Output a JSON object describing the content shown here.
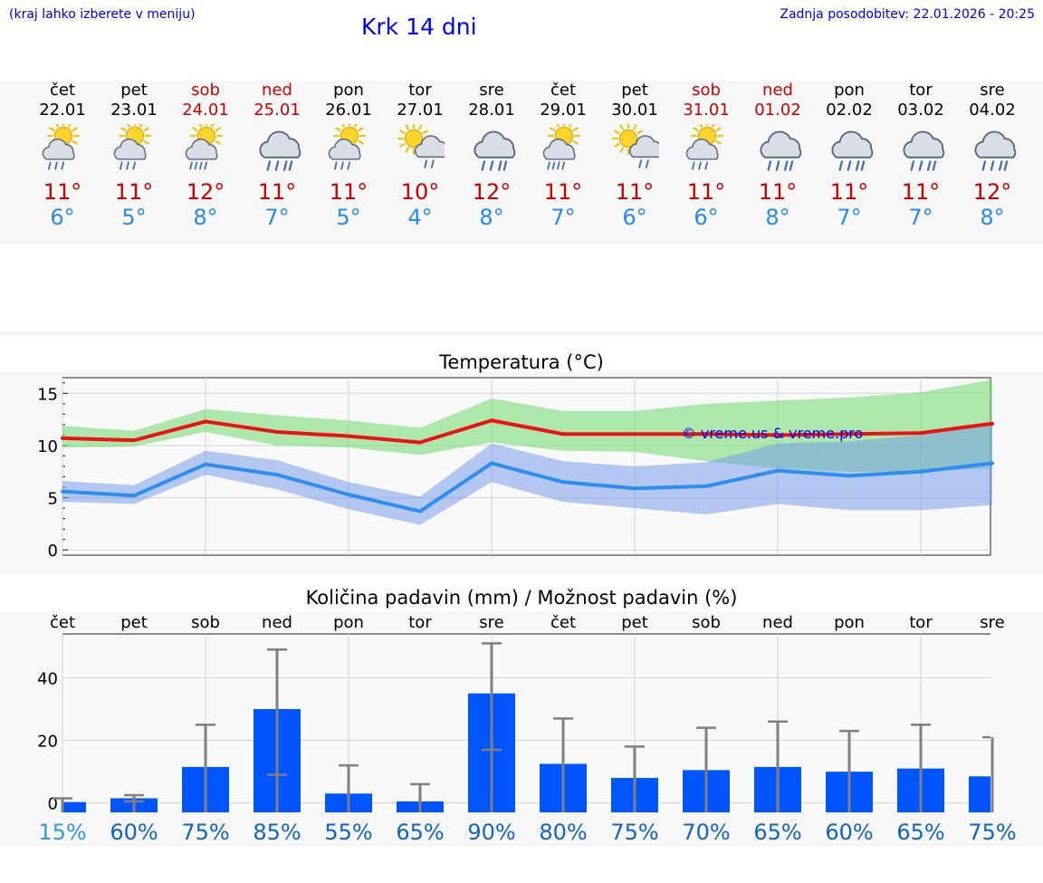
{
  "header": {
    "left_note": "(kraj lahko izberete v meniju)",
    "title": "Krk 14 dni",
    "updated": "Zadnja posodobitev: 22.01.2026 - 20:25"
  },
  "colors": {
    "weekday": "#000000",
    "weekend": "#cc0000",
    "max_temp": "#cc0000",
    "min_temp": "#2a8ae6",
    "link": "#0000ee"
  },
  "forecast": [
    {
      "day": "čet",
      "date": "22.01",
      "weekend": false,
      "icon": "sun-cloud-rain-icon",
      "max": "11°",
      "min": "6°"
    },
    {
      "day": "pet",
      "date": "23.01",
      "weekend": false,
      "icon": "sun-cloud-rain-icon",
      "max": "11°",
      "min": "5°"
    },
    {
      "day": "sob",
      "date": "24.01",
      "weekend": true,
      "icon": "sun-cloud-heavy-rain-icon",
      "max": "12°",
      "min": "8°"
    },
    {
      "day": "ned",
      "date": "25.01",
      "weekend": true,
      "icon": "cloud-rain-icon",
      "max": "11°",
      "min": "7°"
    },
    {
      "day": "pon",
      "date": "26.01",
      "weekend": false,
      "icon": "sun-cloud-rain-icon",
      "max": "11°",
      "min": "5°"
    },
    {
      "day": "tor",
      "date": "27.01",
      "weekend": false,
      "icon": "sun-cloud-light-rain-icon",
      "max": "10°",
      "min": "4°"
    },
    {
      "day": "sre",
      "date": "28.01",
      "weekend": false,
      "icon": "cloud-rain-icon",
      "max": "12°",
      "min": "8°"
    },
    {
      "day": "čet",
      "date": "29.01",
      "weekend": false,
      "icon": "sun-cloud-heavy-rain-icon",
      "max": "11°",
      "min": "7°"
    },
    {
      "day": "pet",
      "date": "30.01",
      "weekend": false,
      "icon": "sun-cloud-light-rain-icon",
      "max": "11°",
      "min": "6°"
    },
    {
      "day": "sob",
      "date": "31.01",
      "weekend": true,
      "icon": "sun-cloud-rain-icon",
      "max": "11°",
      "min": "6°"
    },
    {
      "day": "ned",
      "date": "01.02",
      "weekend": true,
      "icon": "cloud-rain-icon",
      "max": "11°",
      "min": "8°"
    },
    {
      "day": "pon",
      "date": "02.02",
      "weekend": false,
      "icon": "cloud-rain-icon",
      "max": "11°",
      "min": "7°"
    },
    {
      "day": "tor",
      "date": "03.02",
      "weekend": false,
      "icon": "cloud-rain-icon",
      "max": "11°",
      "min": "7°"
    },
    {
      "day": "sre",
      "date": "04.02",
      "weekend": false,
      "icon": "cloud-rain-icon",
      "max": "12°",
      "min": "8°"
    }
  ],
  "chart_data": [
    {
      "type": "line",
      "title": "Temperatura (°C)",
      "watermark": "© vreme.us & vreme.pro",
      "ylim": [
        -0.5,
        16.5
      ],
      "yticks": [
        0,
        5,
        10,
        15
      ],
      "x": [
        0,
        1,
        2,
        3,
        4,
        5,
        6,
        7,
        8,
        9,
        10,
        11,
        12,
        13
      ],
      "series": [
        {
          "name": "max",
          "color": "#ee1111",
          "values": [
            10.7,
            10.5,
            12.3,
            11.3,
            10.9,
            10.3,
            12.4,
            11.1,
            11.1,
            11.1,
            11.0,
            11.1,
            11.2,
            12.1
          ]
        },
        {
          "name": "min",
          "color": "#2b8ef0",
          "values": [
            5.6,
            5.2,
            8.2,
            7.2,
            5.3,
            3.7,
            8.3,
            6.5,
            5.9,
            6.1,
            7.6,
            7.1,
            7.5,
            8.3
          ]
        }
      ],
      "bands": [
        {
          "name": "max-range",
          "color": "rgba(120,220,120,0.6)",
          "low": [
            9.8,
            9.9,
            11.3,
            10.0,
            9.8,
            9.1,
            10.3,
            9.5,
            9.4,
            8.5,
            7.8,
            7.5,
            7.5,
            7.8
          ],
          "high": [
            11.9,
            11.4,
            13.5,
            12.9,
            12.4,
            11.7,
            14.5,
            13.3,
            13.3,
            14.0,
            14.3,
            14.6,
            15.1,
            16.3
          ]
        },
        {
          "name": "min-range",
          "color": "rgba(110,150,235,0.5)",
          "low": [
            4.6,
            4.4,
            7.2,
            5.8,
            3.9,
            2.4,
            6.5,
            4.6,
            4.0,
            3.4,
            4.4,
            3.8,
            3.8,
            4.3
          ],
          "high": [
            6.6,
            6.2,
            9.5,
            8.6,
            6.5,
            5.1,
            10.2,
            8.5,
            8.0,
            8.4,
            10.2,
            10.4,
            11.0,
            12.0
          ]
        }
      ]
    },
    {
      "type": "bar",
      "title": "Količina padavin (mm) / Možnost padavin (%)",
      "categories": [
        "čet",
        "pet",
        "sob",
        "ned",
        "pon",
        "tor",
        "sre",
        "čet",
        "pet",
        "sob",
        "ned",
        "pon",
        "tor",
        "sre"
      ],
      "values": [
        0.3,
        1.5,
        11.5,
        30,
        3,
        0.5,
        35,
        12.5,
        8,
        10.5,
        11.5,
        10,
        11,
        8.5
      ],
      "error_low": [
        0,
        0.5,
        0,
        9,
        0,
        0,
        17,
        0,
        0,
        0,
        0,
        0,
        0,
        0
      ],
      "error_high": [
        1.5,
        2.5,
        25,
        49,
        12,
        6,
        51,
        27,
        18,
        24,
        26,
        23,
        25,
        21
      ],
      "ylim": [
        -3,
        54
      ],
      "yticks": [
        0,
        20,
        40
      ],
      "probability": [
        "15%",
        "60%",
        "75%",
        "85%",
        "55%",
        "65%",
        "90%",
        "80%",
        "75%",
        "70%",
        "65%",
        "60%",
        "65%",
        "75%"
      ],
      "probability_colors": [
        "#3399dd",
        "#1166bb",
        "#1166bb",
        "#1166bb",
        "#1166bb",
        "#1166bb",
        "#1166bb",
        "#1166bb",
        "#1166bb",
        "#1166bb",
        "#1166bb",
        "#1166bb",
        "#1166bb",
        "#1166bb"
      ],
      "bar_color": "#0055ff",
      "error_color": "#808080"
    }
  ]
}
